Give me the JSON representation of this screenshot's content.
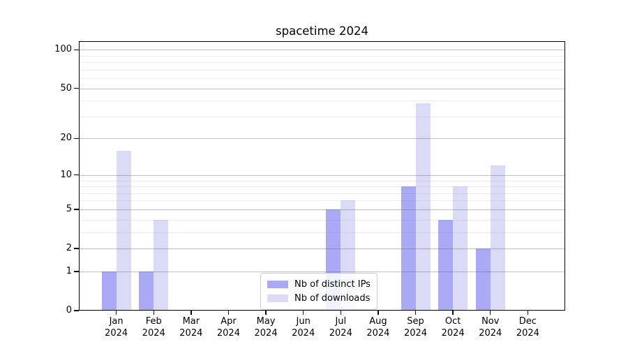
{
  "figure": {
    "background": "#ffffff"
  },
  "chart_data": {
    "type": "bar",
    "title": "spacetime 2024",
    "x": {
      "months": [
        "Jan",
        "Feb",
        "Mar",
        "Apr",
        "May",
        "Jun",
        "Jul",
        "Aug",
        "Sep",
        "Oct",
        "Nov",
        "Dec"
      ],
      "year": "2024"
    },
    "series": [
      {
        "name": "Nb of distinct IPs",
        "color": "#a9a9f5",
        "values": [
          1,
          1,
          0,
          0,
          0,
          0,
          5,
          0,
          8,
          4,
          2,
          0
        ]
      },
      {
        "name": "Nb of downloads",
        "color": "#dbdbf8",
        "values": [
          16,
          4,
          0,
          0,
          0,
          0,
          6,
          0,
          38,
          8,
          12,
          0
        ]
      }
    ],
    "y_axis": {
      "scale": "log1p",
      "ticks": [
        0,
        1,
        2,
        5,
        10,
        20,
        50,
        100
      ],
      "minor_ticks": [
        3,
        4,
        6,
        7,
        8,
        9,
        30,
        40,
        60,
        70,
        80,
        90
      ],
      "range_top_log10": 2.07
    },
    "grid": {
      "major": true,
      "minor": true
    },
    "legend": {
      "position": "lower-center"
    }
  }
}
